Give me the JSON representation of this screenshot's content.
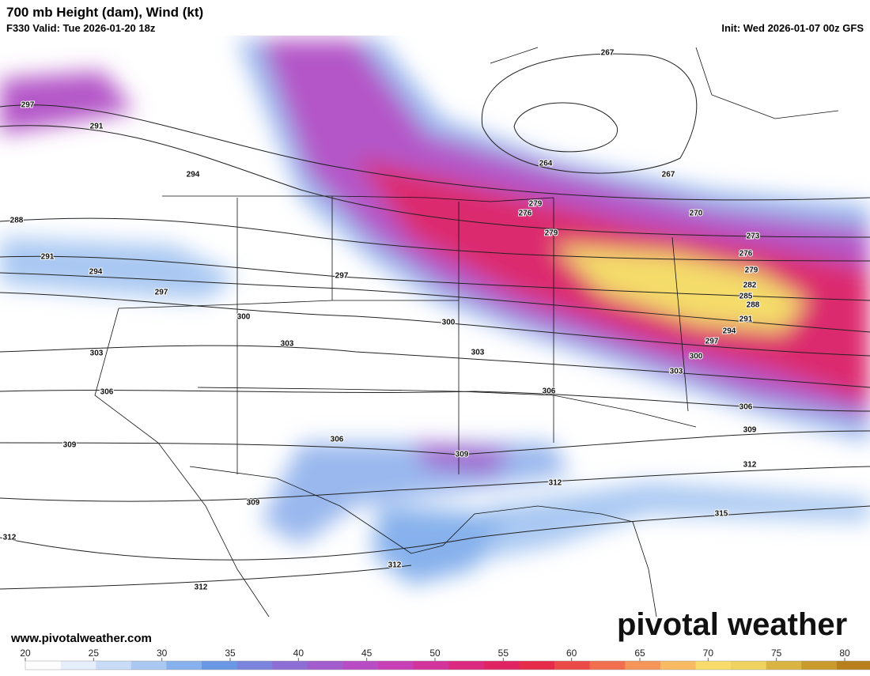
{
  "header": {
    "title": "700 mb Height (dam), Wind (kt)",
    "valid": "F330 Valid: Tue 2026-01-20 18z",
    "init": "Init: Wed 2026-01-07 00z GFS"
  },
  "contour_labels": [
    "267",
    "264",
    "267",
    "270",
    "273",
    "276",
    "279",
    "282",
    "285",
    "288",
    "291",
    "294",
    "297",
    "300",
    "303",
    "306",
    "309",
    "312",
    "315",
    "297",
    "291",
    "294",
    "288",
    "291",
    "294",
    "297",
    "300",
    "297",
    "276",
    "279",
    "279",
    "300",
    "303",
    "303",
    "303",
    "306",
    "306",
    "306",
    "309",
    "309",
    "309",
    "312",
    "312",
    "312",
    "312"
  ],
  "website": "www.pivotalweather.com",
  "watermark": "pivotal weather",
  "colorbar": {
    "ticks": [
      20,
      25,
      30,
      35,
      40,
      45,
      50,
      55,
      60,
      65,
      70,
      75,
      80
    ],
    "lim": [
      20,
      82
    ],
    "colors": [
      "#ffffff",
      "#e6eefb",
      "#c9dcf7",
      "#a9c8f2",
      "#86b1ec",
      "#6a98e4",
      "#7a84dc",
      "#8d6ed4",
      "#a25ccc",
      "#b84cc4",
      "#c83fb6",
      "#d3349c",
      "#dc2a80",
      "#e02463",
      "#e52a4a",
      "#eb4a48",
      "#f16f4e",
      "#f59559",
      "#f8ba63",
      "#f7dc6c",
      "#eed360",
      "#d9b442",
      "#c99a2c",
      "#b8801c"
    ]
  }
}
